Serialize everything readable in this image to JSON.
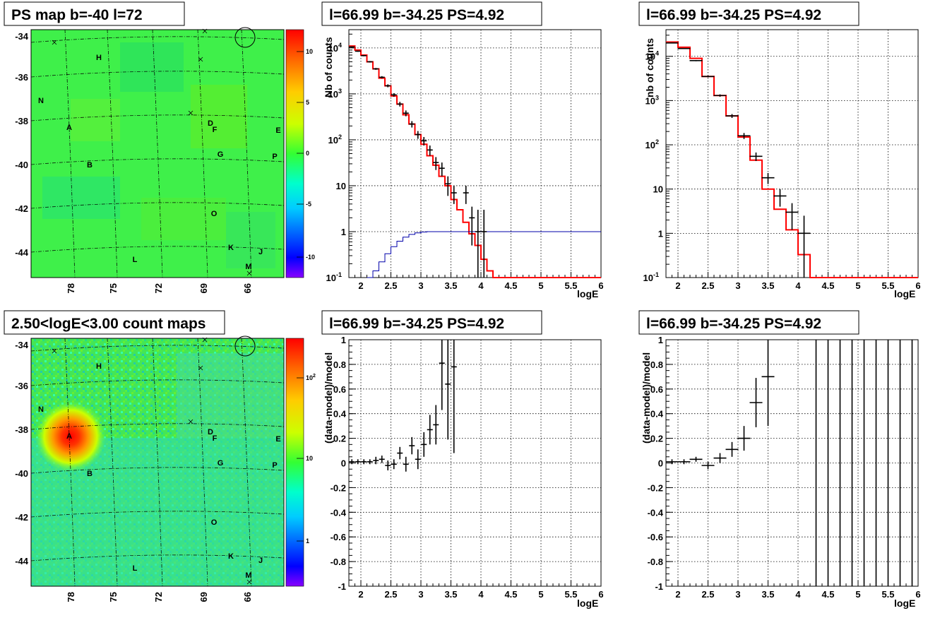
{
  "panels": {
    "ps_map": {
      "title": "PS map b=-40 l=72",
      "y_ticks": [
        "-34",
        "-36",
        "-38",
        "-40",
        "-42",
        "-44"
      ],
      "x_ticks": [
        "78",
        "75",
        "72",
        "69",
        "66"
      ],
      "colorbar_ticks": [
        "10",
        "5",
        "0",
        "-5",
        "-10"
      ],
      "sources": [
        "H",
        "N",
        "A",
        "D",
        "F",
        "E",
        "G",
        "P",
        "B",
        "O",
        "K",
        "J",
        "L",
        "M"
      ]
    },
    "count_map": {
      "title": "2.50<logE<3.00 count maps",
      "y_ticks": [
        "-34",
        "-36",
        "-38",
        "-40",
        "-42",
        "-44"
      ],
      "x_ticks": [
        "78",
        "75",
        "72",
        "69",
        "66"
      ],
      "colorbar_ticks": [
        "10^2",
        "10",
        "1"
      ],
      "sources": [
        "H",
        "N",
        "A",
        "D",
        "F",
        "E",
        "G",
        "P",
        "B",
        "O",
        "K",
        "J",
        "L",
        "M"
      ]
    },
    "spec_left": {
      "title": "l=66.99 b=-34.25 PS=4.92",
      "ylabel": "Nb of counts",
      "xlabel": "logE"
    },
    "spec_right": {
      "title": "l=66.99 b=-34.25 PS=4.92",
      "ylabel": "nb of counts",
      "xlabel": "logE"
    },
    "res_left": {
      "title": "l=66.99 b=-34.25 PS=4.92",
      "ylabel": "(data-model)/model",
      "xlabel": "logE"
    },
    "res_right": {
      "title": "l=66.99 b=-34.25 PS=4.92",
      "ylabel": "(data-model)/model",
      "xlabel": "logE"
    }
  },
  "axes": {
    "logE_ticks": [
      "2",
      "2.5",
      "3",
      "3.5",
      "4",
      "4.5",
      "5",
      "5.5",
      "6"
    ],
    "counts_ticks": [
      "10^-1",
      "1",
      "10",
      "10^2",
      "10^3",
      "10^4"
    ],
    "residual_ticks": [
      "1",
      "0.8",
      "0.6",
      "0.4",
      "0.2",
      "0",
      "-0.2",
      "-0.4",
      "-0.6",
      "-0.8",
      "-1"
    ]
  },
  "chart_data": [
    {
      "type": "line",
      "panel": "spec_left",
      "title": "l=66.99 b=-34.25 PS=4.92",
      "xlabel": "logE",
      "ylabel": "Nb of counts",
      "xlim": [
        1.8,
        6
      ],
      "ylim": [
        0.1,
        25000
      ],
      "y_scale": "log",
      "grid": true,
      "series": [
        {
          "name": "model",
          "color": "#ff0000",
          "x": [
            1.8,
            1.9,
            2.0,
            2.1,
            2.2,
            2.3,
            2.4,
            2.5,
            2.6,
            2.7,
            2.8,
            2.9,
            3.0,
            3.1,
            3.2,
            3.3,
            3.4,
            3.5,
            3.6,
            3.7,
            3.8,
            3.9,
            4.0,
            4.1,
            4.2,
            4.3,
            6.0
          ],
          "y": [
            11000,
            9000,
            7000,
            5000,
            3500,
            2200,
            1500,
            900,
            600,
            350,
            220,
            130,
            80,
            45,
            28,
            16,
            10,
            5,
            3,
            1.6,
            0.9,
            0.5,
            0.25,
            0.14,
            0.1,
            0.1,
            0.1
          ]
        },
        {
          "name": "acceptance",
          "color": "#0000aa",
          "x": [
            2.1,
            2.2,
            2.3,
            2.4,
            2.5,
            2.6,
            2.7,
            2.8,
            2.9,
            3.0,
            3.1,
            3.2,
            6.0
          ],
          "y": [
            0.1,
            0.14,
            0.22,
            0.33,
            0.47,
            0.62,
            0.76,
            0.87,
            0.94,
            0.98,
            1.0,
            1.0,
            1.0
          ]
        },
        {
          "name": "data",
          "x": [
            1.85,
            1.95,
            2.05,
            2.15,
            2.25,
            2.35,
            2.45,
            2.55,
            2.65,
            2.75,
            2.85,
            2.95,
            3.05,
            3.15,
            3.25,
            3.35,
            3.45,
            3.55,
            3.75,
            3.85,
            3.95,
            4.05
          ],
          "y": [
            10500,
            8500,
            6800,
            5000,
            3500,
            2300,
            1500,
            950,
            600,
            380,
            220,
            130,
            95,
            60,
            32,
            24,
            11,
            7,
            7,
            2,
            1,
            1
          ],
          "err_lo": [
            300,
            250,
            220,
            190,
            160,
            130,
            110,
            85,
            70,
            55,
            35,
            25,
            20,
            15,
            10,
            8,
            5,
            3,
            3,
            1.5,
            0.9,
            0.9
          ],
          "err_hi": [
            300,
            250,
            220,
            190,
            160,
            130,
            110,
            85,
            70,
            55,
            35,
            25,
            20,
            15,
            10,
            8,
            5,
            3,
            3,
            1.5,
            2,
            2
          ]
        }
      ]
    },
    {
      "type": "line",
      "panel": "spec_right",
      "title": "l=66.99 b=-34.25 PS=4.92",
      "xlabel": "logE",
      "ylabel": "nb of counts",
      "xlim": [
        1.8,
        6
      ],
      "ylim": [
        0.1,
        40000
      ],
      "y_scale": "log",
      "grid": true,
      "series": [
        {
          "name": "model",
          "color": "#ff0000",
          "x": [
            1.8,
            2.0,
            2.2,
            2.4,
            2.6,
            2.8,
            3.0,
            3.2,
            3.4,
            3.6,
            3.8,
            4.0,
            4.2,
            6.0
          ],
          "y": [
            21000,
            16000,
            9000,
            3500,
            1300,
            450,
            150,
            45,
            10,
            3.5,
            1.2,
            0.33,
            0.1,
            0.1
          ]
        },
        {
          "name": "data",
          "x": [
            1.9,
            2.1,
            2.3,
            2.5,
            2.7,
            2.9,
            3.1,
            3.3,
            3.5,
            3.7,
            3.9,
            4.1
          ],
          "y": [
            20000,
            15000,
            8000,
            3500,
            1300,
            450,
            160,
            55,
            18,
            7,
            3,
            1
          ],
          "err_lo": [
            400,
            350,
            250,
            150,
            80,
            45,
            25,
            12,
            5,
            3,
            1.8,
            0.9
          ],
          "err_hi": [
            400,
            350,
            250,
            150,
            80,
            45,
            25,
            12,
            5,
            3,
            1.8,
            1.5
          ]
        }
      ]
    },
    {
      "type": "scatter",
      "panel": "res_left",
      "title": "l=66.99 b=-34.25 PS=4.92",
      "xlabel": "logE",
      "ylabel": "(data-model)/model",
      "xlim": [
        1.8,
        6
      ],
      "ylim": [
        -1,
        1
      ],
      "grid": true,
      "series": [
        {
          "name": "residuals",
          "x": [
            1.85,
            1.95,
            2.05,
            2.15,
            2.25,
            2.35,
            2.45,
            2.55,
            2.65,
            2.75,
            2.85,
            2.95,
            3.05,
            3.15,
            3.25,
            3.35,
            3.45,
            3.55
          ],
          "y": [
            0.01,
            0.01,
            0.01,
            0.01,
            0.02,
            0.03,
            -0.02,
            -0.01,
            0.08,
            -0.01,
            0.14,
            0.03,
            0.15,
            0.27,
            0.31,
            0.81,
            0.64,
            0.78
          ],
          "err": [
            0.02,
            0.02,
            0.02,
            0.02,
            0.03,
            0.03,
            0.04,
            0.04,
            0.05,
            0.06,
            0.07,
            0.08,
            0.1,
            0.12,
            0.16,
            0.38,
            0.45,
            0.7
          ]
        }
      ]
    },
    {
      "type": "scatter",
      "panel": "res_right",
      "title": "l=66.99 b=-34.25 PS=4.92",
      "xlabel": "logE",
      "ylabel": "(data-model)/model",
      "xlim": [
        1.8,
        6
      ],
      "ylim": [
        -1,
        1
      ],
      "grid": true,
      "series": [
        {
          "name": "residuals",
          "x": [
            1.9,
            2.1,
            2.3,
            2.5,
            2.7,
            2.9,
            3.1,
            3.3,
            3.5
          ],
          "y": [
            0.01,
            0.01,
            0.03,
            -0.02,
            0.04,
            0.11,
            0.2,
            0.49,
            0.7
          ],
          "err": [
            0.02,
            0.02,
            0.02,
            0.03,
            0.04,
            0.06,
            0.1,
            0.2,
            0.4
          ]
        },
        {
          "name": "empty_bins_bars",
          "x": [
            4.3,
            4.5,
            4.7,
            4.9,
            5.1,
            5.3,
            5.5,
            5.7,
            5.9
          ],
          "y": [
            0,
            0,
            0,
            0,
            0,
            0,
            0,
            0,
            0
          ],
          "err": [
            5,
            5,
            5,
            5,
            5,
            5,
            5,
            5,
            5
          ]
        }
      ]
    }
  ]
}
